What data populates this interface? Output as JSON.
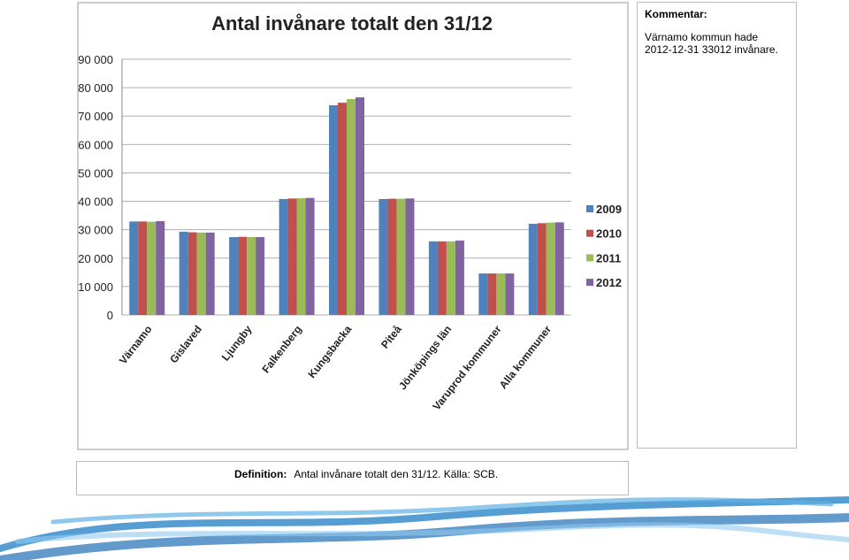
{
  "chart_data": {
    "type": "bar",
    "title": "Antal invånare totalt den 31/12",
    "categories": [
      "Värnamo",
      "Gislaved",
      "Ljungby",
      "Falkenberg",
      "Kungsbacka",
      "Piteå",
      "Jönköpings län",
      "Varuprod kommuner",
      "Alla kommuner"
    ],
    "series": [
      {
        "name": "2009",
        "color": "#4f81bd",
        "values": [
          32900,
          29300,
          27400,
          40800,
          73800,
          40800,
          25900,
          14600,
          32100
        ]
      },
      {
        "name": "2010",
        "color": "#c0504d",
        "values": [
          32900,
          29100,
          27500,
          41000,
          74700,
          40900,
          25900,
          14600,
          32300
        ]
      },
      {
        "name": "2011",
        "color": "#9bbb59",
        "values": [
          32800,
          29000,
          27400,
          41100,
          76000,
          40900,
          25900,
          14600,
          32500
        ]
      },
      {
        "name": "2012",
        "color": "#8064a2",
        "values": [
          33012,
          29000,
          27400,
          41200,
          76600,
          41000,
          26200,
          14600,
          32600
        ]
      }
    ],
    "ylim": [
      0,
      90000
    ],
    "yticks": [
      0,
      {
        "value": 10000,
        "label": "10 000"
      },
      {
        "value": 20000,
        "label": "20 000"
      },
      {
        "value": 30000,
        "label": "30 000"
      },
      {
        "value": 40000,
        "label": "40 000"
      },
      {
        "value": 50000,
        "label": "50 000"
      },
      {
        "value": 60000,
        "label": "60 000"
      },
      {
        "value": 70000,
        "label": "70 000"
      },
      {
        "value": 80000,
        "label": "80 000"
      },
      {
        "value": 90000,
        "label": "90 000"
      }
    ],
    "grid": true,
    "legend": "right"
  },
  "comment": {
    "heading": "Kommentar:",
    "lines": [
      "Värnamo kommun hade",
      "2012-12-31 33012 invånare."
    ]
  },
  "definition": {
    "heading": "Definition:",
    "text": "Antal invånare totalt den 31/12. Källa: SCB."
  }
}
